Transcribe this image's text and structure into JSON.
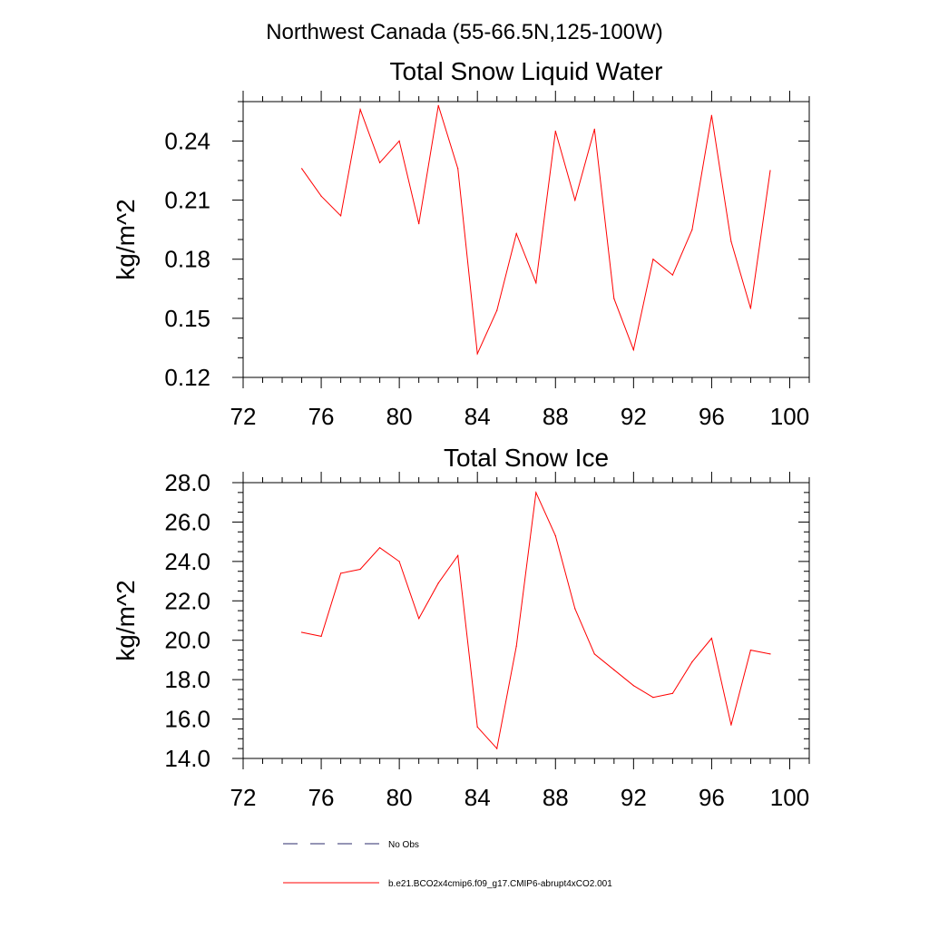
{
  "figure": {
    "title": "Northwest Canada (55-66.5N,125-100W)"
  },
  "chart_data": [
    {
      "type": "line",
      "title": "Total Snow Liquid Water",
      "xlabel": "",
      "ylabel": "kg/m^2",
      "xlim": [
        72,
        101
      ],
      "ylim": [
        0.12,
        0.26
      ],
      "x_ticks": [
        72,
        76,
        80,
        84,
        88,
        92,
        96,
        100
      ],
      "y_ticks": [
        0.12,
        0.15,
        0.18,
        0.21,
        0.24
      ],
      "y_tick_labels": [
        "0.12",
        "0.15",
        "0.18",
        "0.21",
        "0.24"
      ],
      "y_minor_step": 0.01,
      "x_minor_step": 1,
      "x": [
        75,
        76,
        77,
        78,
        79,
        80,
        81,
        82,
        83,
        84,
        85,
        86,
        87,
        88,
        89,
        90,
        91,
        92,
        93,
        94,
        95,
        96,
        97,
        98,
        99
      ],
      "series": [
        {
          "color": "#ff0000",
          "values": [
            0.226,
            0.212,
            0.202,
            0.256,
            0.229,
            0.24,
            0.198,
            0.258,
            0.226,
            0.132,
            0.154,
            0.193,
            0.168,
            0.245,
            0.21,
            0.246,
            0.16,
            0.134,
            0.18,
            0.172,
            0.195,
            0.253,
            0.189,
            0.155,
            0.225
          ]
        }
      ]
    },
    {
      "type": "line",
      "title": "Total Snow Ice",
      "xlabel": "",
      "ylabel": "kg/m^2",
      "xlim": [
        72,
        101
      ],
      "ylim": [
        14.0,
        28.0
      ],
      "x_ticks": [
        72,
        76,
        80,
        84,
        88,
        92,
        96,
        100
      ],
      "y_ticks": [
        14,
        16,
        18,
        20,
        22,
        24,
        26,
        28
      ],
      "y_tick_labels": [
        "14.0",
        "16.0",
        "18.0",
        "20.0",
        "22.0",
        "24.0",
        "26.0",
        "28.0"
      ],
      "y_minor_step": 0.5,
      "x_minor_step": 1,
      "x": [
        75,
        76,
        77,
        78,
        79,
        80,
        81,
        82,
        83,
        84,
        85,
        86,
        87,
        88,
        89,
        90,
        91,
        92,
        93,
        94,
        95,
        96,
        97,
        98,
        99
      ],
      "series": [
        {
          "color": "#ff0000",
          "values": [
            20.4,
            20.2,
            23.4,
            23.6,
            24.7,
            24.0,
            21.1,
            22.9,
            24.3,
            15.6,
            14.5,
            19.7,
            27.5,
            25.3,
            21.6,
            19.3,
            18.5,
            17.7,
            17.1,
            17.3,
            18.9,
            20.1,
            15.7,
            19.5,
            19.3
          ]
        }
      ]
    }
  ],
  "legend": [
    {
      "label": "No Obs",
      "color": "#2b2b6b",
      "dash": "dashed"
    },
    {
      "label": "b.e21.BCO2x4cmip6.f09_g17.CMIP6-abrupt4xCO2.001",
      "color": "#ff0000",
      "dash": "solid"
    }
  ]
}
